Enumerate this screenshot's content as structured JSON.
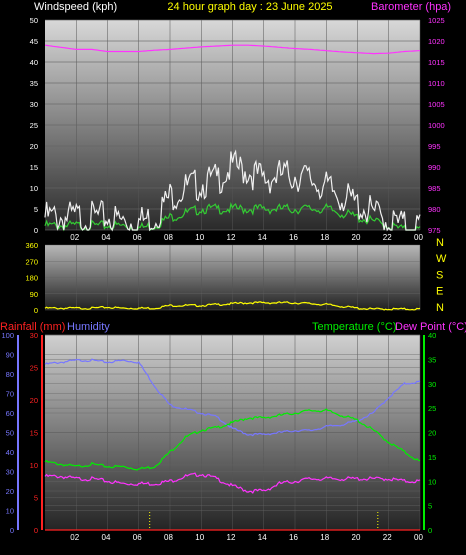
{
  "header": {
    "left": "Windspeed (kph)",
    "center": "24 hour graph day : 23 June 2025",
    "right": "Barometer (hpa)"
  },
  "colors": {
    "white": "#ffffff",
    "gust": "#f0f0f0",
    "windavg": "#33cc33",
    "barometer": "#ff33ff",
    "winddir": "#ffff00",
    "rain": "#ff2222",
    "humidity": "#7777ff",
    "temperature": "#00ee00",
    "dewpoint": "#ff33ff",
    "yellow": "#ffff00"
  },
  "compass": [
    "N",
    "W",
    "S",
    "E",
    "N"
  ],
  "bottom_labels": {
    "rain": "Rainfall (mm)",
    "humidity": "Humidity",
    "temperature": "Temperature (°C)",
    "dewpoint": "Dew Point (°C)"
  },
  "x_ticks": [
    "02",
    "04",
    "06",
    "08",
    "10",
    "12",
    "14",
    "16",
    "18",
    "20",
    "22",
    "00"
  ],
  "chart_data": [
    {
      "type": "line",
      "title": "24 hour graph day : 23 June 2025",
      "y_left_label": "Windspeed (kph)",
      "y_right_label": "Barometer (hpa)",
      "y_left_ticks": [
        "0",
        "5",
        "10",
        "15",
        "20",
        "25",
        "30",
        "35",
        "40",
        "45",
        "50"
      ],
      "y_right_ticks": [
        "975",
        "980",
        "985",
        "990",
        "995",
        "1000",
        "1005",
        "1010",
        "1015",
        "1020",
        "1025"
      ],
      "ylim_left": [
        0,
        50
      ],
      "ylim_right": [
        975,
        1025
      ],
      "hours": [
        0,
        1,
        2,
        3,
        4,
        5,
        6,
        7,
        8,
        9,
        10,
        11,
        12,
        13,
        14,
        15,
        16,
        17,
        18,
        19,
        20,
        21,
        22,
        23,
        24
      ],
      "series": [
        {
          "name": "Windspeed",
          "color": "#33cc33",
          "values": [
            1,
            1,
            1,
            1,
            1,
            1,
            0.5,
            1,
            3,
            4,
            5,
            5,
            5,
            5,
            5,
            5,
            5,
            5,
            5,
            4,
            3,
            2,
            1,
            0,
            0
          ]
        },
        {
          "name": "Gust",
          "color": "#f0f0f0",
          "values": [
            3,
            3,
            3,
            3,
            3,
            2,
            2,
            3,
            8,
            10,
            11,
            12,
            15,
            14,
            12,
            13,
            13,
            12,
            10,
            8,
            6,
            4,
            2,
            1,
            1
          ]
        },
        {
          "name": "Barometer",
          "color": "#ff33ff",
          "axis": "right",
          "values": [
            1019,
            1018.5,
            1018,
            1018,
            1017.5,
            1017.5,
            1017.5,
            1017.8,
            1018,
            1018.3,
            1018.6,
            1018.8,
            1019,
            1019,
            1018.8,
            1018.5,
            1018.2,
            1018,
            1017.7,
            1017.4,
            1017.2,
            1017,
            1017.1,
            1017.5,
            1017.7
          ]
        }
      ]
    },
    {
      "type": "line",
      "y_left_ticks": [
        "0",
        "90",
        "180",
        "270",
        "360"
      ],
      "ylim": [
        0,
        360
      ],
      "hours": [
        0,
        1,
        2,
        3,
        4,
        5,
        6,
        7,
        8,
        9,
        10,
        11,
        12,
        13,
        14,
        15,
        16,
        17,
        18,
        19,
        20,
        21,
        22,
        23,
        24
      ],
      "series": [
        {
          "name": "Wind direction",
          "color": "#ffff00",
          "values": [
            10,
            10,
            10,
            10,
            15,
            10,
            10,
            10,
            25,
            25,
            25,
            30,
            35,
            40,
            40,
            40,
            40,
            35,
            30,
            20,
            10,
            5,
            5,
            5,
            5
          ]
        }
      ]
    },
    {
      "type": "line",
      "y_left_ticks": [
        "0",
        "10",
        "20",
        "30",
        "40",
        "50",
        "60",
        "70",
        "80",
        "90",
        "100"
      ],
      "y_left2_ticks": [
        "0",
        "5",
        "10",
        "15",
        "20",
        "25",
        "30"
      ],
      "y_right_ticks": [
        "0",
        "5",
        "10",
        "15",
        "20",
        "25",
        "30",
        "35",
        "40"
      ],
      "ylim_left": [
        0,
        100
      ],
      "ylim_rain": [
        0,
        30
      ],
      "ylim_right": [
        0,
        40
      ],
      "hours": [
        0,
        1,
        2,
        3,
        4,
        5,
        6,
        7,
        8,
        9,
        10,
        11,
        12,
        13,
        14,
        15,
        16,
        17,
        18,
        19,
        20,
        21,
        22,
        23,
        24
      ],
      "series": [
        {
          "name": "Humidity",
          "color": "#7777ff",
          "axis": "left",
          "values": [
            85,
            86,
            87,
            87,
            86,
            87,
            86,
            74,
            64,
            62,
            60,
            58,
            52,
            49,
            49,
            50,
            51,
            51,
            53,
            54,
            56,
            60,
            68,
            75,
            76
          ]
        },
        {
          "name": "Temperature (°C)",
          "color": "#00ee00",
          "axis": "right",
          "values": [
            14,
            13.5,
            13,
            13.5,
            13,
            13,
            12.5,
            13,
            16,
            19,
            20.5,
            21,
            22,
            23,
            23,
            23.5,
            24,
            24.5,
            24.5,
            23.5,
            22.5,
            20.5,
            18,
            16,
            14
          ]
        },
        {
          "name": "Dew Point (°C)",
          "color": "#ff33ff",
          "axis": "right",
          "values": [
            11,
            11,
            10.5,
            10.5,
            10,
            9.5,
            9.5,
            9.5,
            10,
            11,
            11.5,
            10.5,
            9,
            8,
            8,
            9.5,
            10,
            10.5,
            10.5,
            10.5,
            10.5,
            10.5,
            10.5,
            10,
            10
          ]
        },
        {
          "name": "Rainfall (mm)",
          "color": "#ff2222",
          "axis": "rain",
          "values": [
            0,
            0,
            0,
            0,
            0,
            0,
            0,
            0,
            0,
            0,
            0,
            0,
            0,
            0,
            0,
            0,
            0,
            0,
            0,
            0,
            0,
            0,
            0,
            0,
            0
          ]
        }
      ]
    }
  ]
}
